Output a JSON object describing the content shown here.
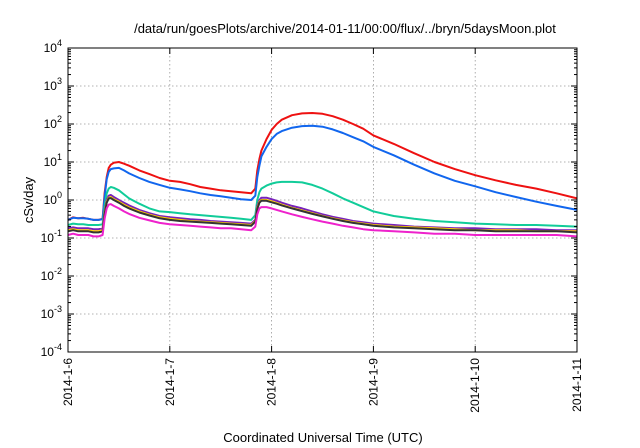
{
  "chart_data": {
    "type": "line",
    "title": "/data/run/goesPlots/archive/2014-01-11/00:00/flux/../bryn/5daysMoon.plot",
    "xlabel": "Coordinated Universal Time (UTC)",
    "ylabel": "cSv/day",
    "y_scale": "log",
    "ylim_exp": [
      -4,
      4
    ],
    "xlim": [
      0,
      5
    ],
    "x_ticks": [
      {
        "value": 0,
        "label": "2014-1-6"
      },
      {
        "value": 1,
        "label": "2014-1-7"
      },
      {
        "value": 2,
        "label": "2014-1-8"
      },
      {
        "value": 3,
        "label": "2014-1-9"
      },
      {
        "value": 4,
        "label": "2014-1-10"
      },
      {
        "value": 5,
        "label": "2014-1-11"
      }
    ],
    "grid": true,
    "legend": "none",
    "x": [
      0,
      0.05,
      0.1,
      0.15,
      0.2,
      0.25,
      0.3,
      0.34,
      0.36,
      0.38,
      0.4,
      0.42,
      0.45,
      0.5,
      0.55,
      0.6,
      0.7,
      0.8,
      0.9,
      1.0,
      1.1,
      1.2,
      1.3,
      1.4,
      1.5,
      1.6,
      1.7,
      1.8,
      1.84,
      1.86,
      1.88,
      1.9,
      1.95,
      2.0,
      2.05,
      2.1,
      2.2,
      2.3,
      2.4,
      2.5,
      2.6,
      2.7,
      2.8,
      2.9,
      3.0,
      3.2,
      3.4,
      3.6,
      3.8,
      4.0,
      4.2,
      4.4,
      4.6,
      4.8,
      5.0
    ],
    "series": [
      {
        "color": "#ee1111",
        "values": [
          0.3,
          0.35,
          0.33,
          0.34,
          0.32,
          0.3,
          0.3,
          0.32,
          1.5,
          4.0,
          7.0,
          8.5,
          9.5,
          10.0,
          9.0,
          8.0,
          6.0,
          4.8,
          3.8,
          3.2,
          3.0,
          2.6,
          2.2,
          2.0,
          1.8,
          1.7,
          1.6,
          1.5,
          2.0,
          6.0,
          12.0,
          20.0,
          40.0,
          70.0,
          100.0,
          130.0,
          170.0,
          190.0,
          195.0,
          185.0,
          160.0,
          130.0,
          100.0,
          75.0,
          50.0,
          30.0,
          17.0,
          10.0,
          6.5,
          4.5,
          3.3,
          2.5,
          2.0,
          1.5,
          1.1
        ]
      },
      {
        "color": "#1166ee",
        "values": [
          0.3,
          0.34,
          0.33,
          0.33,
          0.32,
          0.3,
          0.3,
          0.31,
          1.2,
          3.5,
          5.5,
          6.5,
          6.8,
          7.0,
          6.0,
          5.0,
          3.8,
          3.0,
          2.5,
          2.1,
          1.9,
          1.7,
          1.5,
          1.35,
          1.25,
          1.15,
          1.05,
          1.0,
          1.3,
          4.0,
          8.0,
          14.0,
          25.0,
          40.0,
          55.0,
          65.0,
          80.0,
          88.0,
          90.0,
          85.0,
          72.0,
          58.0,
          45.0,
          35.0,
          25.0,
          15.0,
          8.5,
          5.0,
          3.2,
          2.3,
          1.6,
          1.2,
          0.9,
          0.7,
          0.55
        ]
      },
      {
        "color": "#11cc99",
        "values": [
          0.22,
          0.24,
          0.23,
          0.23,
          0.22,
          0.22,
          0.22,
          0.23,
          0.7,
          1.5,
          2.0,
          2.2,
          2.1,
          1.8,
          1.4,
          1.1,
          0.8,
          0.6,
          0.5,
          0.48,
          0.45,
          0.42,
          0.4,
          0.38,
          0.36,
          0.34,
          0.32,
          0.3,
          0.4,
          1.0,
          1.6,
          2.0,
          2.4,
          2.7,
          2.9,
          3.0,
          3.0,
          2.9,
          2.5,
          2.0,
          1.5,
          1.1,
          0.85,
          0.65,
          0.5,
          0.38,
          0.32,
          0.28,
          0.26,
          0.24,
          0.23,
          0.22,
          0.22,
          0.21,
          0.2
        ]
      },
      {
        "color": "#7722bb",
        "values": [
          0.18,
          0.19,
          0.18,
          0.18,
          0.18,
          0.17,
          0.17,
          0.18,
          0.5,
          1.0,
          1.3,
          1.35,
          1.2,
          1.0,
          0.85,
          0.72,
          0.55,
          0.45,
          0.38,
          0.35,
          0.33,
          0.31,
          0.3,
          0.28,
          0.27,
          0.26,
          0.25,
          0.24,
          0.3,
          0.7,
          1.0,
          1.15,
          1.15,
          1.05,
          0.95,
          0.85,
          0.7,
          0.6,
          0.5,
          0.42,
          0.36,
          0.32,
          0.28,
          0.26,
          0.24,
          0.22,
          0.2,
          0.19,
          0.18,
          0.18,
          0.17,
          0.17,
          0.17,
          0.16,
          0.16
        ]
      },
      {
        "color": "#ffcc00",
        "values": [
          0.16,
          0.17,
          0.16,
          0.16,
          0.16,
          0.15,
          0.15,
          0.16,
          0.45,
          0.9,
          1.15,
          1.2,
          1.05,
          0.9,
          0.75,
          0.64,
          0.5,
          0.41,
          0.35,
          0.32,
          0.3,
          0.28,
          0.27,
          0.26,
          0.25,
          0.24,
          0.23,
          0.22,
          0.28,
          0.62,
          0.9,
          1.0,
          1.0,
          0.92,
          0.84,
          0.75,
          0.62,
          0.53,
          0.45,
          0.38,
          0.33,
          0.29,
          0.26,
          0.24,
          0.22,
          0.2,
          0.19,
          0.18,
          0.17,
          0.16,
          0.16,
          0.16,
          0.15,
          0.15,
          0.15
        ]
      },
      {
        "color": "#333333",
        "values": [
          0.15,
          0.16,
          0.15,
          0.15,
          0.15,
          0.14,
          0.14,
          0.15,
          0.42,
          0.85,
          1.1,
          1.12,
          1.0,
          0.85,
          0.7,
          0.6,
          0.47,
          0.39,
          0.33,
          0.3,
          0.28,
          0.27,
          0.26,
          0.25,
          0.24,
          0.23,
          0.22,
          0.21,
          0.27,
          0.58,
          0.85,
          0.95,
          0.95,
          0.87,
          0.8,
          0.72,
          0.6,
          0.51,
          0.43,
          0.37,
          0.32,
          0.28,
          0.25,
          0.23,
          0.21,
          0.19,
          0.18,
          0.17,
          0.16,
          0.16,
          0.15,
          0.15,
          0.15,
          0.15,
          0.14
        ]
      },
      {
        "color": "#ee22cc",
        "values": [
          0.12,
          0.13,
          0.12,
          0.12,
          0.12,
          0.11,
          0.11,
          0.12,
          0.32,
          0.6,
          0.75,
          0.78,
          0.7,
          0.6,
          0.5,
          0.43,
          0.34,
          0.29,
          0.25,
          0.23,
          0.22,
          0.21,
          0.2,
          0.19,
          0.18,
          0.18,
          0.17,
          0.16,
          0.2,
          0.42,
          0.6,
          0.65,
          0.65,
          0.6,
          0.55,
          0.5,
          0.42,
          0.36,
          0.31,
          0.27,
          0.24,
          0.21,
          0.19,
          0.17,
          0.16,
          0.15,
          0.14,
          0.13,
          0.13,
          0.12,
          0.12,
          0.12,
          0.12,
          0.12,
          0.11
        ]
      }
    ]
  }
}
